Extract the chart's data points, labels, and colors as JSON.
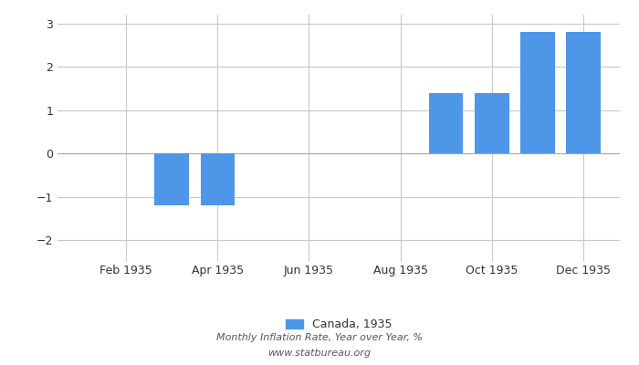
{
  "month_nums": [
    1,
    2,
    3,
    4,
    5,
    6,
    7,
    8,
    9,
    10,
    11,
    12
  ],
  "values": [
    null,
    null,
    -1.2,
    -1.2,
    null,
    null,
    null,
    null,
    1.4,
    1.4,
    2.8,
    2.8
  ],
  "bar_color": "#4d96e8",
  "ylim": [
    -2.35,
    3.2
  ],
  "yticks": [
    -2,
    -1,
    0,
    1,
    2,
    3
  ],
  "xtick_positions": [
    2,
    4,
    6,
    8,
    10,
    12
  ],
  "xtick_labels": [
    "Feb 1935",
    "Apr 1935",
    "Jun 1935",
    "Aug 1935",
    "Oct 1935",
    "Dec 1935"
  ],
  "legend_label": "Canada, 1935",
  "subtitle1": "Monthly Inflation Rate, Year over Year, %",
  "subtitle2": "www.statbureau.org",
  "background_color": "#ffffff",
  "grid_color": "#c8c8c8",
  "bar_width": 0.75,
  "xlim": [
    0.5,
    12.8
  ]
}
